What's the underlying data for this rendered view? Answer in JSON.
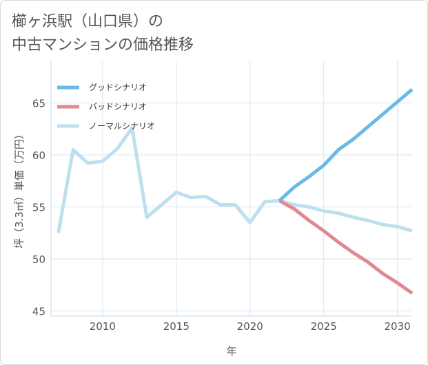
{
  "title_lines": [
    "櫛ヶ浜駅（山口県）の",
    "中古マンションの価格推移"
  ],
  "chart_data": {
    "type": "line",
    "xlabel": "年",
    "ylabel": "坪（3.3㎡）単価（万円）",
    "xlim": [
      2006.5,
      2031
    ],
    "ylim": [
      44.5,
      69
    ],
    "x_ticks": [
      2010,
      2015,
      2020,
      2025,
      2030
    ],
    "y_ticks": [
      45,
      50,
      55,
      60,
      65
    ],
    "grid": true,
    "legend_position": "top-left",
    "series": [
      {
        "name": "グッドシナリオ",
        "color": "#6cb8e6",
        "x": [
          2022,
          2023,
          2024,
          2025,
          2026,
          2027,
          2028,
          2029,
          2030,
          2031
        ],
        "y": [
          55.6,
          56.9,
          57.9,
          59.0,
          60.5,
          61.5,
          62.7,
          63.9,
          65.1,
          66.3
        ]
      },
      {
        "name": "バッドシナリオ",
        "color": "#de8a93",
        "x": [
          2022,
          2023,
          2024,
          2025,
          2026,
          2027,
          2028,
          2029,
          2030,
          2031
        ],
        "y": [
          55.6,
          54.8,
          53.7,
          52.7,
          51.6,
          50.6,
          49.7,
          48.6,
          47.7,
          46.7
        ]
      },
      {
        "name": "ノーマルシナリオ",
        "color": "#bedfee",
        "x": [
          2007,
          2008,
          2009,
          2010,
          2011,
          2012,
          2013,
          2014,
          2015,
          2016,
          2017,
          2018,
          2019,
          2020,
          2021,
          2022,
          2023,
          2024,
          2025,
          2026,
          2027,
          2028,
          2029,
          2030,
          2031
        ],
        "y": [
          52.5,
          60.5,
          59.2,
          59.4,
          60.6,
          62.6,
          54.0,
          55.2,
          56.4,
          55.9,
          56.0,
          55.2,
          55.2,
          53.5,
          55.5,
          55.6,
          55.2,
          55.0,
          54.6,
          54.4,
          54.0,
          53.7,
          53.3,
          53.1,
          52.7
        ]
      }
    ]
  }
}
